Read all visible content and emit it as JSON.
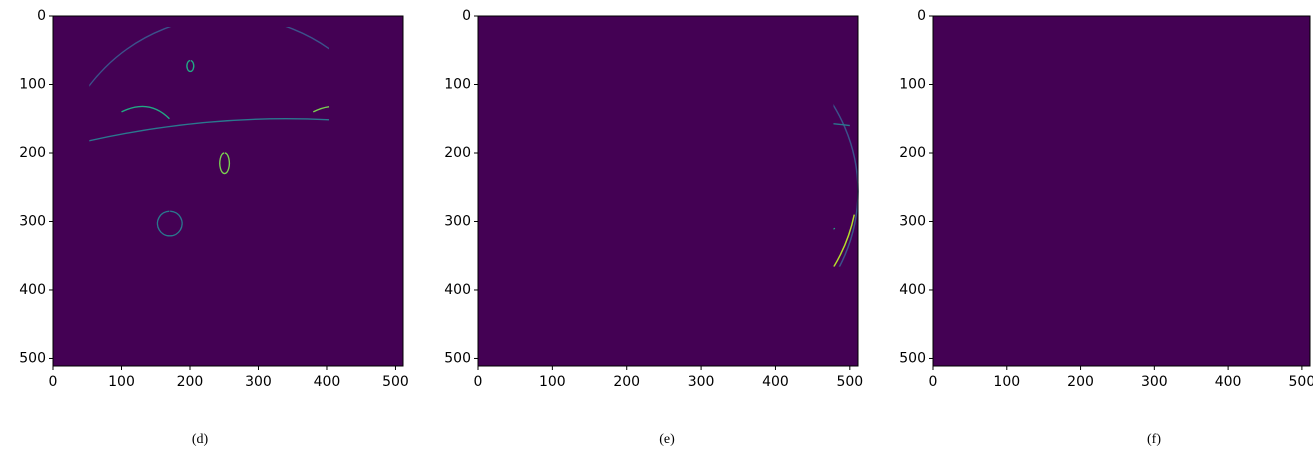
{
  "chart_data": [
    {
      "type": "image",
      "caption": "(d)",
      "xlim": [
        0,
        511
      ],
      "ylim": [
        511,
        0
      ],
      "xticks": [
        0,
        100,
        200,
        300,
        400,
        500
      ],
      "yticks": [
        0,
        100,
        200,
        300,
        400,
        500
      ]
    },
    {
      "type": "image",
      "caption": "(e)",
      "xlim": [
        0,
        511
      ],
      "ylim": [
        511,
        0
      ],
      "xticks": [
        0,
        100,
        200,
        300,
        400,
        500
      ],
      "yticks": [
        0,
        100,
        200,
        300,
        400,
        500
      ]
    },
    {
      "type": "image",
      "caption": "(f)",
      "xlim": [
        0,
        511
      ],
      "ylim": [
        511,
        0
      ],
      "xticks": [
        0,
        100,
        200,
        300,
        400,
        500
      ],
      "yticks": [
        0,
        100,
        200,
        300,
        400,
        500
      ]
    }
  ]
}
